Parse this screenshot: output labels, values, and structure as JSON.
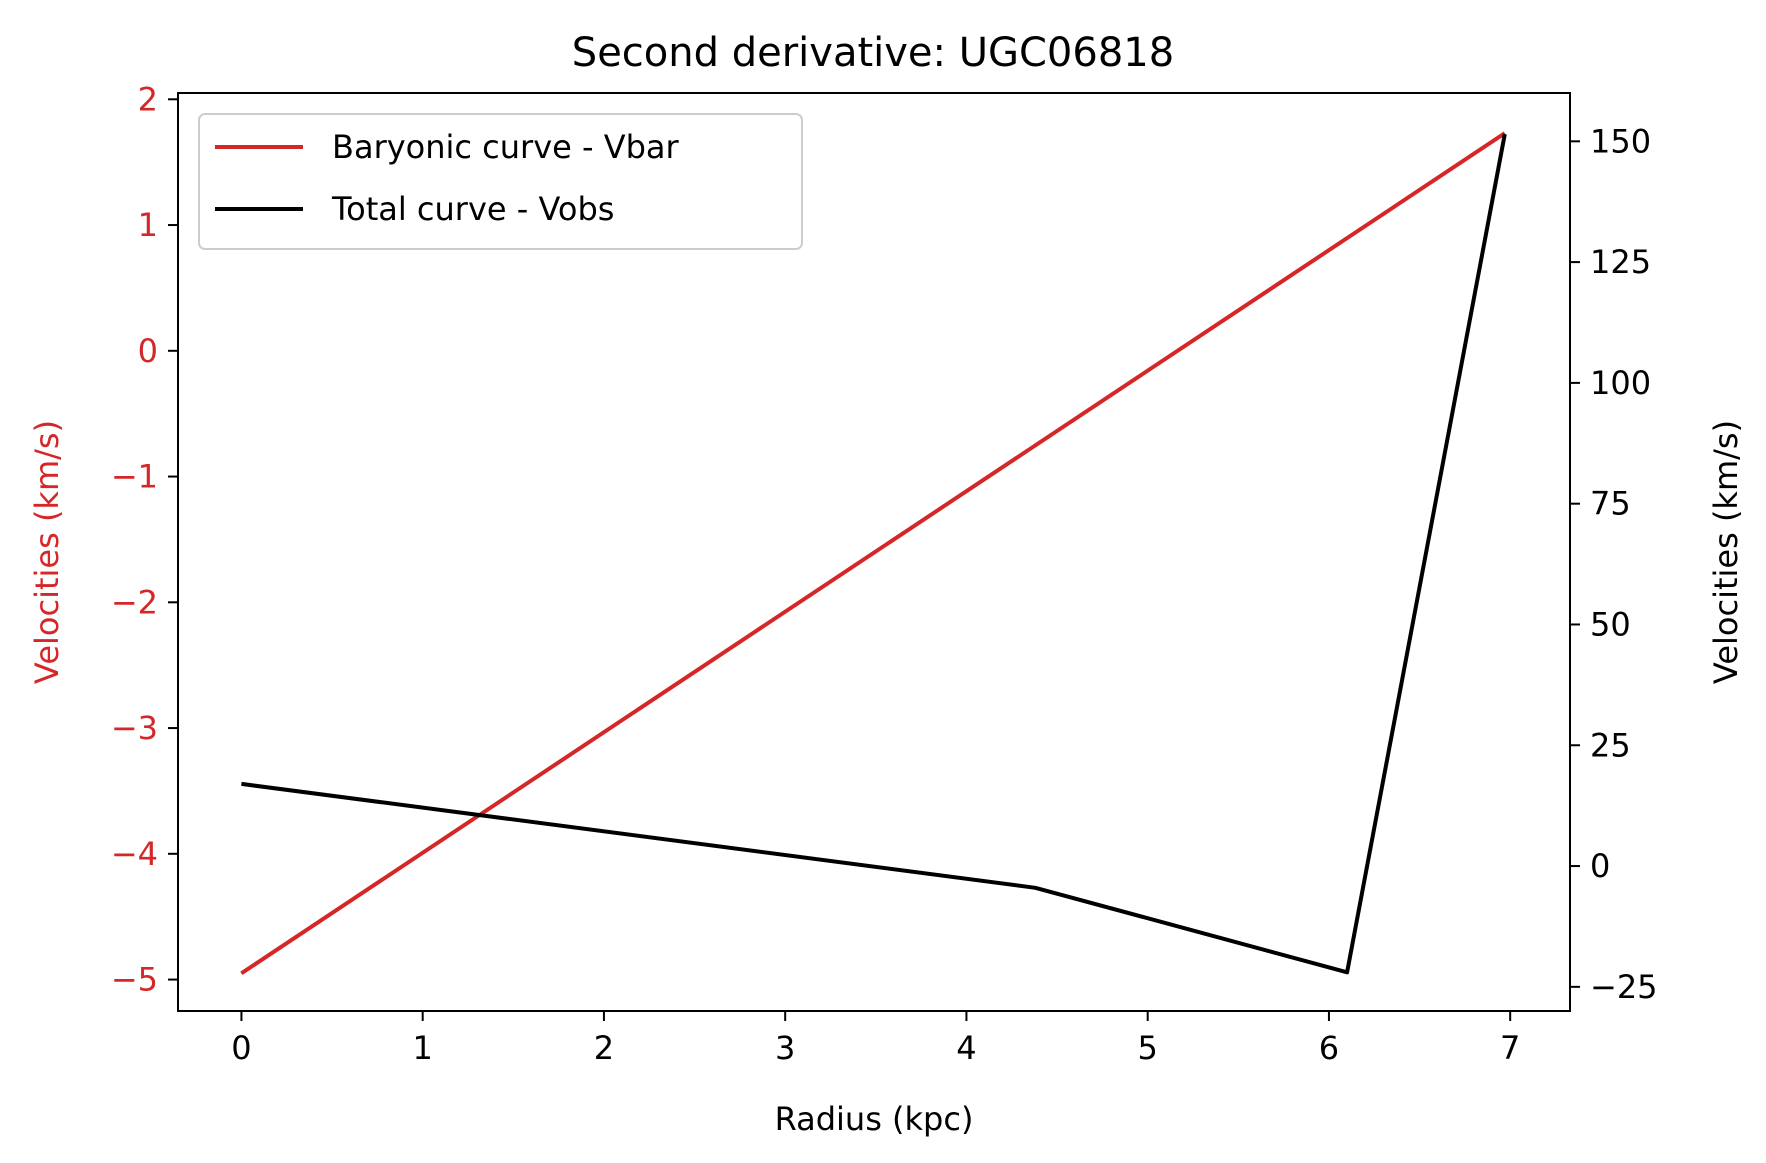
{
  "chart_data": {
    "type": "line",
    "title": "Second derivative: UGC06818",
    "xlabel": "Radius (kpc)",
    "ylabel_left": "Velocities (km/s)",
    "ylabel_right": "Velocities (km/s)",
    "xlim": [
      -0.35,
      7.33
    ],
    "ylim_left": [
      -5.25,
      2.05
    ],
    "ylim_right": [
      -30,
      160
    ],
    "x_ticks": [
      "0",
      "1",
      "2",
      "3",
      "4",
      "5",
      "6",
      "7"
    ],
    "y_left_ticks": [
      "−5",
      "−4",
      "−3",
      "−2",
      "−1",
      "0",
      "1",
      "2"
    ],
    "y_right_ticks": [
      "−25",
      "0",
      "25",
      "50",
      "75",
      "100",
      "125",
      "150"
    ],
    "legend_position": "upper-left",
    "grid": false,
    "colors": {
      "left_axis": "#d62728",
      "right_axis": "#000000"
    },
    "series": [
      {
        "name": "Baryonic curve - Vbar",
        "axis": "left",
        "color": "#d62728",
        "x": [
          0,
          6.97
        ],
        "y": [
          -4.95,
          1.73
        ]
      },
      {
        "name": "Total curve - Vobs",
        "axis": "right",
        "color": "#000000",
        "x": [
          0,
          4.38,
          6.1,
          6.97
        ],
        "y": [
          17,
          -4.5,
          -22,
          151.5
        ]
      }
    ]
  }
}
